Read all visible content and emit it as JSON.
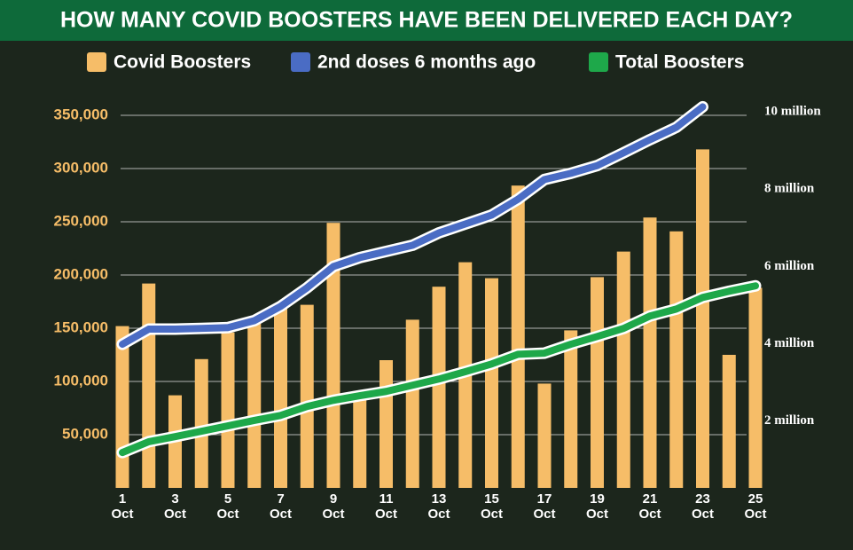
{
  "chart_data": {
    "type": "bar",
    "title": "HOW MANY COVID BOOSTERS HAVE BEEN DELIVERED EACH DAY?",
    "categories": [
      "1 Oct",
      null,
      "3 Oct",
      null,
      "5 Oct",
      null,
      "7 Oct",
      null,
      "9 Oct",
      null,
      "11 Oct",
      null,
      "13 Oct",
      null,
      "15 Oct",
      null,
      "17 Oct",
      null,
      "19 Oct",
      null,
      "21 Oct",
      null,
      "23 Oct",
      null,
      "25 Oct"
    ],
    "series": [
      {
        "name": "Covid Boosters",
        "type": "bar",
        "axis": "y",
        "color": "#f6bd68",
        "values": [
          152000,
          192000,
          87000,
          121000,
          146000,
          155000,
          170000,
          172000,
          249000,
          84000,
          120000,
          158000,
          189000,
          212000,
          197000,
          284000,
          98000,
          148000,
          198000,
          222000,
          254000,
          241000,
          318000,
          125000,
          188000
        ]
      },
      {
        "name": "2nd doses 6 months ago",
        "type": "line",
        "axis": "y2",
        "color": "#4a6cc4",
        "values": [
          3990000,
          4380000,
          4380000,
          4400000,
          4420000,
          4600000,
          4970000,
          5450000,
          6000000,
          6230000,
          6390000,
          6550000,
          6870000,
          7100000,
          7330000,
          7740000,
          8250000,
          8410000,
          8610000,
          8940000,
          9280000,
          9600000,
          10130000,
          null,
          null
        ]
      },
      {
        "name": "Total Boosters",
        "type": "line",
        "axis": "y2",
        "color": "#1ea84a",
        "values": [
          1190000,
          1470000,
          1600000,
          1740000,
          1880000,
          2020000,
          2150000,
          2380000,
          2540000,
          2660000,
          2770000,
          2930000,
          3090000,
          3280000,
          3480000,
          3730000,
          3760000,
          3990000,
          4190000,
          4400000,
          4720000,
          4900000,
          5200000,
          5360000,
          5500000
        ]
      }
    ],
    "ylim": [
      0,
      350000
    ],
    "yticks": [
      {
        "value": 50000,
        "label": "50,000"
      },
      {
        "value": 100000,
        "label": "100,000"
      },
      {
        "value": 150000,
        "label": "150,000"
      },
      {
        "value": 200000,
        "label": "200,000"
      },
      {
        "value": 250000,
        "label": "250,000"
      },
      {
        "value": 300000,
        "label": "300,000"
      },
      {
        "value": 350000,
        "label": "350,000"
      }
    ],
    "y2lim": [
      275000,
      9910000
    ],
    "y2ticks": [
      {
        "value": 2000000,
        "label": "2 million"
      },
      {
        "value": 4000000,
        "label": "4 million"
      },
      {
        "value": 6000000,
        "label": "6 million"
      },
      {
        "value": 8000000,
        "label": "8 million"
      },
      {
        "value": 10000000,
        "label": "10 million"
      }
    ],
    "grid": true
  }
}
